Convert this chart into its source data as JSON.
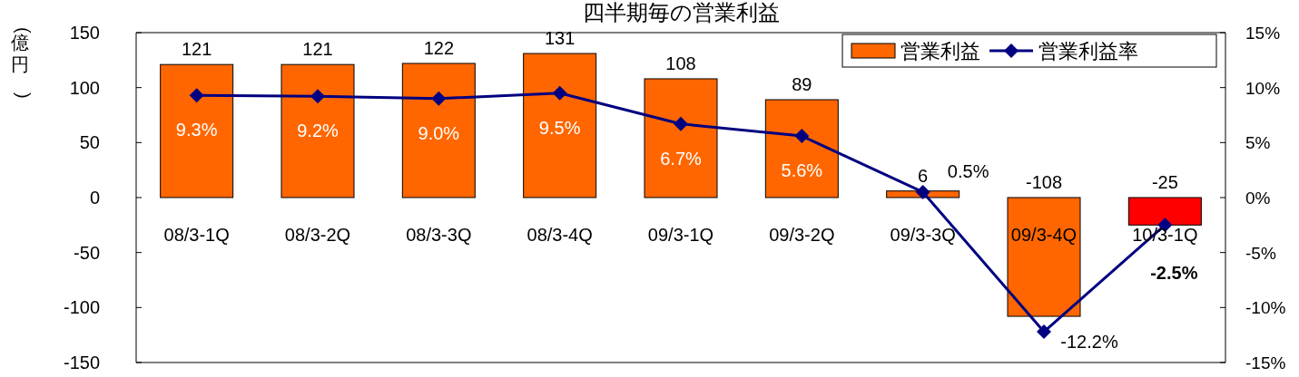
{
  "chart_data": {
    "type": "bar",
    "title": "四半期毎の営業利益",
    "ylabel": "(億円)",
    "categories": [
      "08/3-1Q",
      "08/3-2Q",
      "08/3-3Q",
      "08/3-4Q",
      "09/3-1Q",
      "09/3-2Q",
      "09/3-3Q",
      "09/3-4Q",
      "10/3-1Q"
    ],
    "series": [
      {
        "name": "営業利益",
        "colors": [
          "#ff6600",
          "#ff6600",
          "#ff6600",
          "#ff6600",
          "#ff6600",
          "#ff6600",
          "#ff6600",
          "#ff6600",
          "#ff0000"
        ],
        "color": "#ff6600",
        "values": [
          121,
          121,
          122,
          131,
          108,
          89,
          6,
          -108,
          -25
        ]
      },
      {
        "name": "営業利益率",
        "type": "line",
        "axis": "y2",
        "color": "#000080",
        "marker": "diamond",
        "values": [
          9.3,
          9.2,
          9.0,
          9.5,
          6.7,
          5.6,
          0.5,
          -12.2,
          -2.5
        ],
        "value_labels": [
          "9.3%",
          "9.2%",
          "9.0%",
          "9.5%",
          "6.7%",
          "5.6%",
          "0.5%",
          "-12.2%",
          "-2.5%"
        ]
      }
    ],
    "data_labels": true,
    "ylim": [
      -150,
      150
    ],
    "yticks": [
      -150,
      -100,
      -50,
      0,
      50,
      100,
      150
    ],
    "y2lim": [
      -15,
      15
    ],
    "y2ticks": [
      {
        "value": -15,
        "label": "-15%"
      },
      {
        "value": -10,
        "label": "-10%"
      },
      {
        "value": -5,
        "label": "-5%"
      },
      {
        "value": 0,
        "label": "0%"
      },
      {
        "value": 5,
        "label": "5%"
      },
      {
        "value": 10,
        "label": "10%"
      },
      {
        "value": 15,
        "label": "15%"
      }
    ],
    "grid": false,
    "legend": "top right"
  }
}
